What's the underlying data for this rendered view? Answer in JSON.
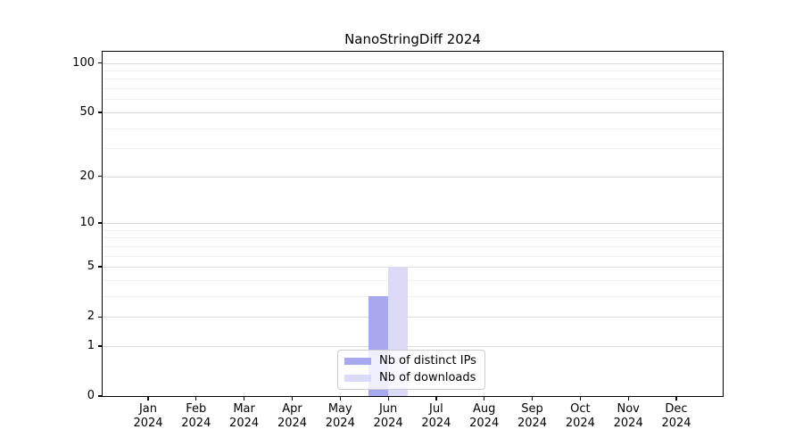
{
  "chart_data": {
    "type": "bar",
    "title": "NanoStringDiff 2024",
    "x_categories": [
      {
        "month": "Jan",
        "year": "2024"
      },
      {
        "month": "Feb",
        "year": "2024"
      },
      {
        "month": "Mar",
        "year": "2024"
      },
      {
        "month": "Apr",
        "year": "2024"
      },
      {
        "month": "May",
        "year": "2024"
      },
      {
        "month": "Jun",
        "year": "2024"
      },
      {
        "month": "Jul",
        "year": "2024"
      },
      {
        "month": "Aug",
        "year": "2024"
      },
      {
        "month": "Sep",
        "year": "2024"
      },
      {
        "month": "Oct",
        "year": "2024"
      },
      {
        "month": "Nov",
        "year": "2024"
      },
      {
        "month": "Dec",
        "year": "2024"
      }
    ],
    "series": [
      {
        "name": "Nb of distinct IPs",
        "color": "#a8a8ef",
        "values": [
          0,
          0,
          0,
          0,
          0,
          3,
          0,
          0,
          0,
          0,
          0,
          0
        ]
      },
      {
        "name": "Nb of downloads",
        "color": "#dbdbf8",
        "values": [
          0,
          0,
          0,
          0,
          0,
          5,
          0,
          0,
          0,
          0,
          0,
          0
        ]
      }
    ],
    "y_scale": "log1p",
    "y_ticks": [
      0,
      1,
      2,
      5,
      10,
      20,
      50,
      100
    ],
    "y_minor_gridlines": [
      3,
      4,
      6,
      7,
      8,
      9,
      30,
      40,
      60,
      70,
      80,
      90
    ],
    "ylim": [
      0,
      117
    ],
    "grid": true,
    "legend_position": "lower center"
  },
  "colors": {
    "background": "#ffffff",
    "axis": "#000000",
    "grid_major": "#dcdcdc",
    "grid_minor": "#f2f2f2",
    "legend_border": "#cccccc",
    "legend_background": "rgba(255,255,255,0.8)",
    "text": "#000000"
  }
}
